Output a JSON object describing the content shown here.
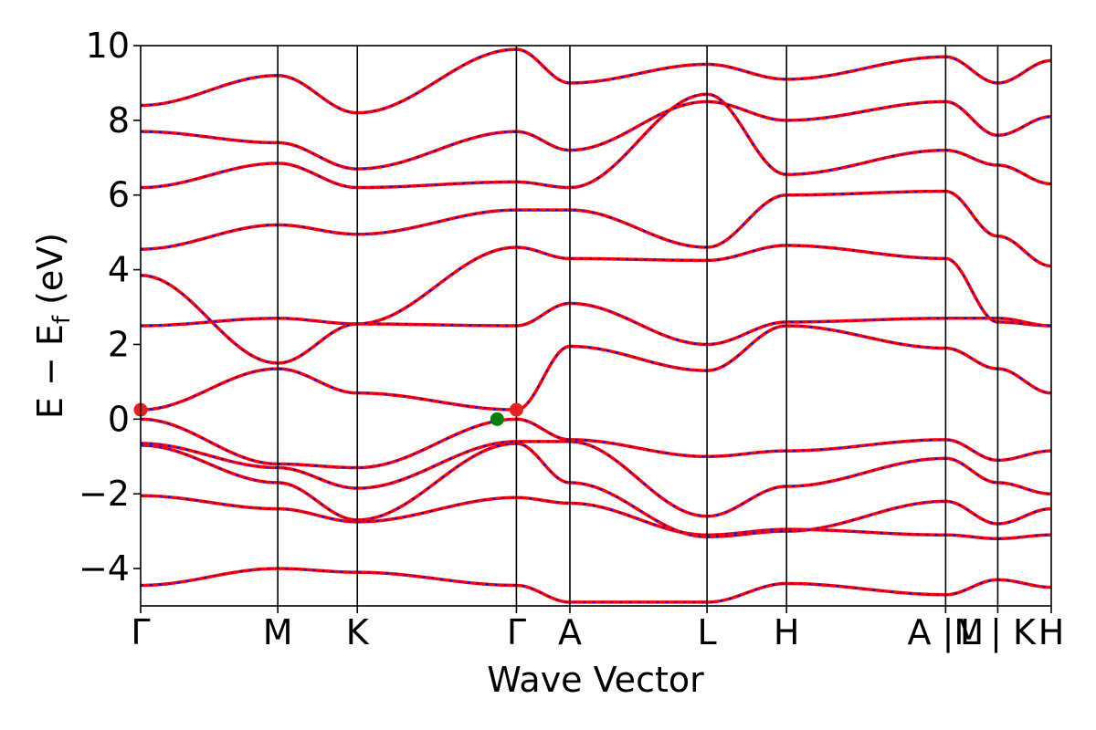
{
  "chart_data": {
    "type": "line",
    "title": "",
    "xlabel": "Wave Vector",
    "ylabel_parts": {
      "main": "E − E",
      "sub": "f",
      "unit": " (eV)"
    },
    "ylim": [
      -5,
      10
    ],
    "yticks": [
      -4,
      -2,
      0,
      2,
      4,
      6,
      8,
      10
    ],
    "ytick_labels": [
      "−4",
      "−2",
      "0",
      "2",
      "4",
      "6",
      "8",
      "10"
    ],
    "kpath": [
      {
        "label": "Γ",
        "x": 0.0
      },
      {
        "label": "M",
        "x": 1.0
      },
      {
        "label": "K",
        "x": 1.58
      },
      {
        "label": "Γ",
        "x": 2.74
      },
      {
        "label": "A",
        "x": 3.13
      },
      {
        "label": "L",
        "x": 4.13
      },
      {
        "label": "H",
        "x": 4.71
      },
      {
        "label": "A |M",
        "x": 5.87
      },
      {
        "label": "L | K",
        "x": 6.25
      },
      {
        "label": "H",
        "x": 6.64
      }
    ],
    "xlim": [
      0.0,
      6.64
    ],
    "segments": [
      [
        0.0,
        1.0
      ],
      [
        1.0,
        1.58
      ],
      [
        1.58,
        2.74
      ],
      [
        2.74,
        3.13
      ],
      [
        3.13,
        4.13
      ],
      [
        4.13,
        4.71
      ],
      [
        4.71,
        5.87
      ],
      [
        5.87,
        6.25
      ],
      [
        6.25,
        6.64
      ]
    ],
    "bands": [
      {
        "name": "band1",
        "segments": [
          [
            -4.45,
            -4.0
          ],
          [
            -4.0,
            -4.1
          ],
          [
            -4.1,
            -4.45
          ],
          [
            -4.45,
            -4.9
          ],
          [
            -4.9,
            -4.9
          ],
          [
            -4.9,
            -4.4
          ],
          [
            -4.4,
            -4.7
          ],
          [
            -4.7,
            -4.3
          ],
          [
            -4.3,
            -4.5
          ]
        ]
      },
      {
        "name": "band2",
        "segments": [
          [
            -2.05,
            -2.4
          ],
          [
            -2.4,
            -2.75
          ],
          [
            -2.75,
            -2.1
          ],
          [
            -2.1,
            -2.25
          ],
          [
            -2.25,
            -3.1
          ],
          [
            -3.1,
            -2.95
          ],
          [
            -2.95,
            -3.1
          ],
          [
            -3.1,
            -3.2
          ],
          [
            -3.2,
            -3.1
          ]
        ]
      },
      {
        "name": "band3",
        "segments": [
          [
            -0.7,
            -1.7
          ],
          [
            -1.7,
            -2.7
          ],
          [
            -2.7,
            -0.65
          ],
          [
            -0.65,
            -1.7
          ],
          [
            -1.7,
            -3.15
          ],
          [
            -3.15,
            -3.0
          ],
          [
            -3.0,
            -2.2
          ],
          [
            -2.2,
            -2.8
          ],
          [
            -2.8,
            -2.4
          ]
        ]
      },
      {
        "name": "band4",
        "segments": [
          [
            -0.65,
            -1.3
          ],
          [
            -1.3,
            -1.85
          ],
          [
            -1.85,
            -0.6
          ],
          [
            -0.6,
            -0.6
          ],
          [
            -0.6,
            -2.6
          ],
          [
            -2.6,
            -1.8
          ],
          [
            -1.8,
            -1.05
          ],
          [
            -1.05,
            -1.7
          ],
          [
            -1.7,
            -2.0
          ]
        ]
      },
      {
        "name": "band5",
        "segments": [
          [
            0.0,
            -1.2
          ],
          [
            -1.2,
            -1.3
          ],
          [
            -1.3,
            0.0
          ],
          [
            0.0,
            -0.55
          ],
          [
            -0.55,
            -1.0
          ],
          [
            -1.0,
            -0.85
          ],
          [
            -0.85,
            -0.55
          ],
          [
            -0.55,
            -1.1
          ],
          [
            -1.1,
            -0.85
          ]
        ]
      },
      {
        "name": "band6",
        "segments": [
          [
            0.25,
            1.35
          ],
          [
            1.35,
            0.7
          ],
          [
            0.7,
            0.25
          ],
          [
            0.25,
            1.95
          ],
          [
            1.95,
            1.3
          ],
          [
            1.3,
            2.5
          ],
          [
            2.5,
            1.9
          ],
          [
            1.9,
            1.35
          ],
          [
            1.35,
            0.7
          ]
        ]
      },
      {
        "name": "band7",
        "segments": [
          [
            2.5,
            2.7
          ],
          [
            2.7,
            2.55
          ],
          [
            2.55,
            2.5
          ],
          [
            2.5,
            3.1
          ],
          [
            3.1,
            2.0
          ],
          [
            2.0,
            2.6
          ],
          [
            2.6,
            2.7
          ],
          [
            2.7,
            2.7
          ],
          [
            2.7,
            2.5
          ]
        ]
      },
      {
        "name": "band8",
        "segments": [
          [
            3.85,
            1.5
          ],
          [
            1.5,
            2.55
          ],
          [
            2.55,
            4.6
          ],
          [
            4.6,
            4.3
          ],
          [
            4.3,
            4.25
          ],
          [
            4.25,
            4.65
          ],
          [
            4.65,
            4.3
          ],
          [
            4.3,
            2.6
          ],
          [
            2.6,
            2.5
          ]
        ]
      },
      {
        "name": "band9",
        "segments": [
          [
            4.55,
            5.2
          ],
          [
            5.2,
            4.95
          ],
          [
            4.95,
            5.6
          ],
          [
            5.6,
            5.6
          ],
          [
            5.6,
            4.6
          ],
          [
            4.6,
            6.0
          ],
          [
            6.0,
            6.1
          ],
          [
            6.1,
            4.9
          ],
          [
            4.9,
            4.1
          ]
        ]
      },
      {
        "name": "band10",
        "segments": [
          [
            6.2,
            6.85
          ],
          [
            6.85,
            6.2
          ],
          [
            6.2,
            6.35
          ],
          [
            6.35,
            6.2
          ],
          [
            6.2,
            8.7
          ],
          [
            8.7,
            6.55
          ],
          [
            6.55,
            7.2
          ],
          [
            7.2,
            6.8
          ],
          [
            6.8,
            6.3
          ]
        ]
      },
      {
        "name": "band11",
        "segments": [
          [
            7.7,
            7.4
          ],
          [
            7.4,
            6.7
          ],
          [
            6.7,
            7.7
          ],
          [
            7.7,
            7.2
          ],
          [
            7.2,
            8.5
          ],
          [
            8.5,
            8.0
          ],
          [
            8.0,
            8.5
          ],
          [
            8.5,
            7.6
          ],
          [
            7.6,
            8.1
          ]
        ]
      },
      {
        "name": "band12",
        "segments": [
          [
            8.4,
            9.2
          ],
          [
            9.2,
            8.2
          ],
          [
            8.2,
            9.9
          ],
          [
            9.9,
            9.0
          ],
          [
            9.0,
            9.5
          ],
          [
            9.5,
            9.1
          ],
          [
            9.1,
            9.7
          ],
          [
            9.7,
            9.0
          ],
          [
            9.0,
            9.6
          ]
        ]
      }
    ],
    "markers": [
      {
        "name": "vbm",
        "x": 2.6,
        "y": 0.0,
        "color": "#008000"
      },
      {
        "name": "cbm",
        "x": 2.74,
        "y": 0.25,
        "color": "#e62020"
      },
      {
        "name": "cbm-edge",
        "x": 0.0,
        "y": 0.25,
        "color": "#e62020"
      }
    ],
    "line_colors": {
      "solid": "#ff0000",
      "dashed": "#0000ff"
    }
  }
}
